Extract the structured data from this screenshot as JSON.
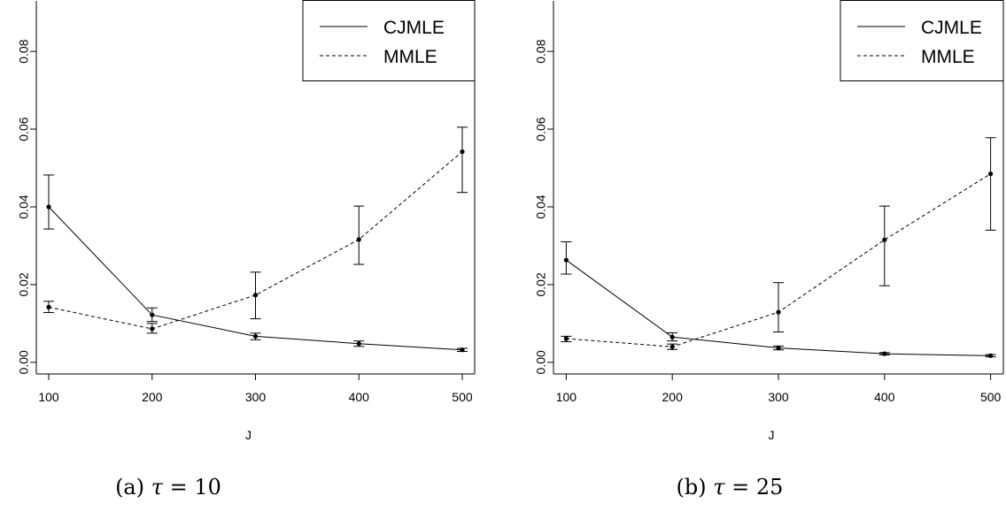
{
  "chart_data": [
    {
      "type": "line",
      "caption": "(a) τ = 10",
      "caption_prefix": "(a)",
      "caption_symbol": "τ",
      "caption_rest": " = 10",
      "xlabel": "J",
      "ylabel": "",
      "x": [
        100,
        200,
        300,
        400,
        500
      ],
      "xticks": [
        "100",
        "200",
        "300",
        "400",
        "500"
      ],
      "yticks": [
        "0.00",
        "0.02",
        "0.04",
        "0.06",
        "0.08"
      ],
      "xlim": [
        88,
        512
      ],
      "ylim": [
        -0.003,
        0.093
      ],
      "legend_position": "top-right",
      "series": [
        {
          "name": "CJMLE",
          "style": "solid",
          "values": [
            0.04,
            0.0122,
            0.0067,
            0.0048,
            0.0032
          ],
          "lower": [
            0.0343,
            0.0105,
            0.0058,
            0.0041,
            0.0028
          ],
          "upper": [
            0.0482,
            0.014,
            0.0075,
            0.0055,
            0.0036
          ]
        },
        {
          "name": "MMLE",
          "style": "dashed",
          "values": [
            0.0142,
            0.0086,
            0.0173,
            0.0316,
            0.0542
          ],
          "lower": [
            0.0128,
            0.0075,
            0.0112,
            0.0252,
            0.0437
          ],
          "upper": [
            0.0157,
            0.01,
            0.0232,
            0.0402,
            0.0605
          ]
        }
      ]
    },
    {
      "type": "line",
      "caption": "(b) τ = 25",
      "caption_prefix": "(b)",
      "caption_symbol": "τ",
      "caption_rest": " = 25",
      "xlabel": "J",
      "ylabel": "",
      "x": [
        100,
        200,
        300,
        400,
        500
      ],
      "xticks": [
        "100",
        "200",
        "300",
        "400",
        "500"
      ],
      "yticks": [
        "0.00",
        "0.02",
        "0.04",
        "0.06",
        "0.08"
      ],
      "xlim": [
        88,
        512
      ],
      "ylim": [
        -0.003,
        0.093
      ],
      "legend_position": "top-right",
      "series": [
        {
          "name": "CJMLE",
          "style": "solid",
          "values": [
            0.0263,
            0.0065,
            0.0037,
            0.0022,
            0.0017
          ],
          "lower": [
            0.0227,
            0.0055,
            0.0032,
            0.0019,
            0.0014
          ],
          "upper": [
            0.031,
            0.0076,
            0.0042,
            0.0025,
            0.002
          ]
        },
        {
          "name": "MMLE",
          "style": "dashed",
          "values": [
            0.0061,
            0.004,
            0.0129,
            0.0315,
            0.0485
          ],
          "lower": [
            0.0053,
            0.0033,
            0.0078,
            0.0197,
            0.034
          ],
          "upper": [
            0.0067,
            0.0047,
            0.0205,
            0.0402,
            0.0578
          ]
        }
      ]
    }
  ]
}
